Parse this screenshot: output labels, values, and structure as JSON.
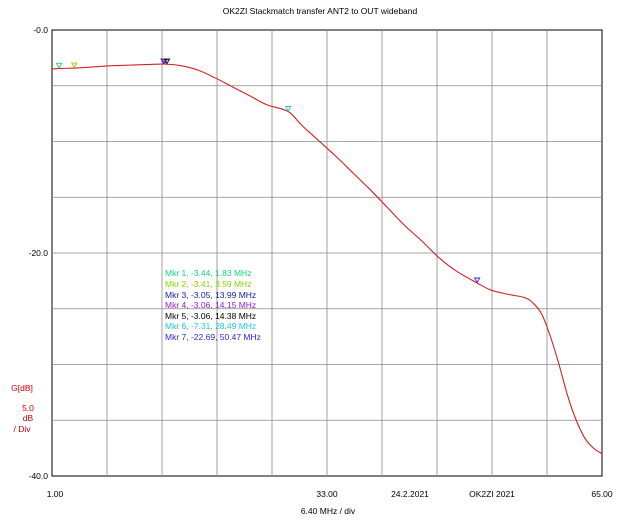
{
  "chart_data": {
    "type": "line",
    "title": "OK2ZI Stackmatch transfer ANT2 to OUT wideband",
    "x_label": "6.40 MHz / div",
    "y_label": "G[dB]",
    "y_scale": [
      "5.0",
      "dB",
      "/ Div"
    ],
    "xlim": [
      1.0,
      65.0
    ],
    "ylim": [
      -40.0,
      0.0
    ],
    "x_divisions": 10,
    "y_divisions": 8,
    "grid": true,
    "x_tick_labels": [
      "1.00",
      "33.00",
      "65.00"
    ],
    "y_tick_labels": [
      "-0.0",
      "-20.0",
      "-40.0"
    ],
    "annotations": [
      "24.2.2021",
      "OK2ZI 2021"
    ],
    "line_color": "#d42020",
    "series": [
      {
        "x": [
          1.0,
          2.0,
          4.0,
          6.0,
          8.0,
          10.0,
          12.0,
          14.15,
          16.0,
          18.0,
          20.0,
          22.0,
          24.0,
          26.0,
          28.49,
          30.0,
          32.0,
          34.0,
          36.0,
          38.0,
          40.0,
          42.0,
          44.0,
          46.0,
          48.0,
          50.47,
          52.0,
          54.0,
          56.0,
          57.0,
          58.0,
          59.0,
          60.0,
          61.0,
          62.0,
          63.0,
          64.0,
          65.0
        ],
        "y": [
          -3.5,
          -3.45,
          -3.4,
          -3.3,
          -3.2,
          -3.15,
          -3.1,
          -3.06,
          -3.2,
          -3.6,
          -4.3,
          -5.1,
          -5.9,
          -6.7,
          -7.31,
          -8.5,
          -9.9,
          -11.3,
          -12.8,
          -14.3,
          -15.9,
          -17.5,
          -18.9,
          -20.4,
          -21.6,
          -22.69,
          -23.3,
          -23.7,
          -24.0,
          -24.5,
          -25.5,
          -27.5,
          -30.0,
          -32.8,
          -35.0,
          -36.6,
          -37.5,
          -38.0
        ]
      }
    ],
    "markers": [
      {
        "label": "Mkr 1, -3.44, 1.83 MHz",
        "x": 1.83,
        "y": -3.44,
        "color": "#16d47a"
      },
      {
        "label": "Mkr 2, -3.41, 3.59 MHz",
        "x": 3.59,
        "y": -3.41,
        "color": "#88d400"
      },
      {
        "label": "Mkr 3, -3.05, 13.99 MHz",
        "x": 13.99,
        "y": -3.05,
        "color": "#1a1aa0"
      },
      {
        "label": "Mkr 4, -3.06, 14.15 MHz",
        "x": 14.15,
        "y": -3.06,
        "color": "#9a1ad8"
      },
      {
        "label": "Mkr 5, -3.06, 14.38 MHz",
        "x": 14.38,
        "y": -3.06,
        "color": "#000000"
      },
      {
        "label": "Mkr 6, -7.31, 28.49 MHz",
        "x": 28.49,
        "y": -7.31,
        "color": "#18c8e8"
      },
      {
        "label": "Mkr 7, -22.69, 50.47 MHz",
        "x": 50.47,
        "y": -22.69,
        "color": "#2a2ad8"
      }
    ]
  }
}
